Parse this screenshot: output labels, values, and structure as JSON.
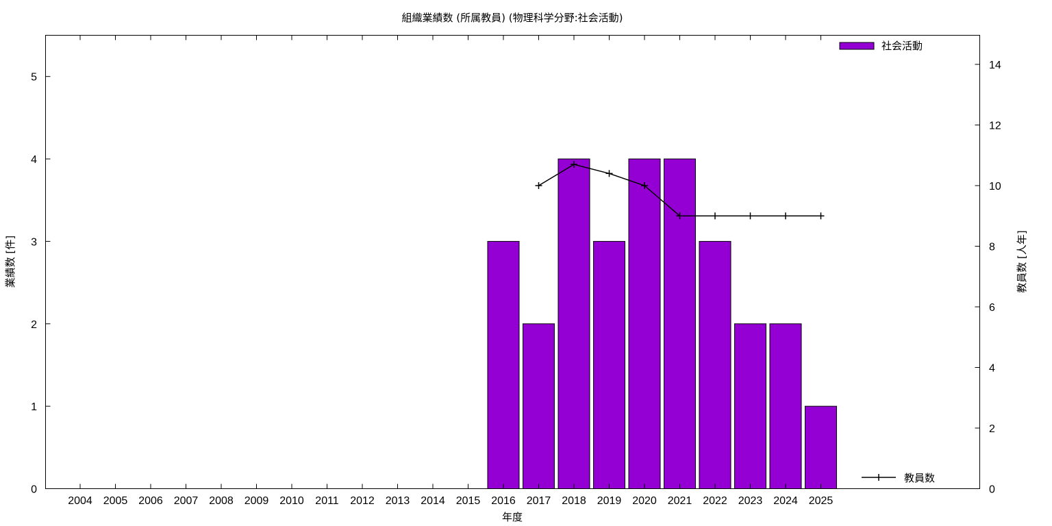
{
  "chart_data": {
    "type": "bar",
    "title": "組織業績数 (所属教員) (物理科学分野:社会活動)",
    "xlabel": "年度",
    "ylabel": "業績数 [件]",
    "y2label": "教員数 [人年]",
    "categories": [
      "2004",
      "2005",
      "2006",
      "2007",
      "2008",
      "2009",
      "2010",
      "2011",
      "2012",
      "2013",
      "2014",
      "2015",
      "2016",
      "2017",
      "2018",
      "2019",
      "2020",
      "2021",
      "2022",
      "2023",
      "2024",
      "2025"
    ],
    "series": [
      {
        "name": "社会活動",
        "type": "bar",
        "axis": "left",
        "color": "#9400d3",
        "values": [
          0,
          0,
          0,
          0,
          0,
          0,
          0,
          0,
          0,
          0,
          0,
          0,
          3,
          2,
          4,
          3,
          4,
          4,
          3,
          2,
          2,
          1
        ]
      },
      {
        "name": "教員数",
        "type": "line",
        "axis": "right",
        "color": "#000000",
        "values": [
          null,
          null,
          null,
          null,
          null,
          null,
          null,
          null,
          null,
          null,
          null,
          null,
          null,
          10,
          10.7,
          10.4,
          10,
          9,
          9,
          9,
          9,
          9
        ]
      }
    ],
    "ylim": [
      0,
      5.5
    ],
    "yticks": [
      0,
      1,
      2,
      3,
      4,
      5
    ],
    "y2lim": [
      0,
      14.96
    ],
    "y2ticks": [
      0,
      2,
      4,
      6,
      8,
      10,
      12,
      14
    ],
    "legend_position": "top-right / bottom-right",
    "grid": false
  }
}
